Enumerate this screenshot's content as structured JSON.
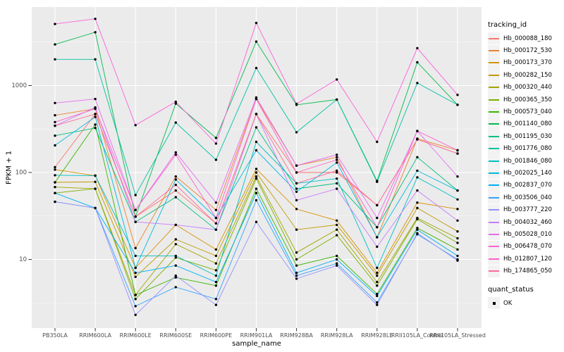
{
  "chart_data": {
    "type": "line",
    "title": "",
    "xlabel": "sample_name",
    "ylabel": "FPKM + 1",
    "y_scale": "log10",
    "y_ticks": [
      10,
      100,
      1000
    ],
    "y_tick_labels": [
      "10",
      "100",
      "1000"
    ],
    "y_minor_logs": [
      0.5,
      1.5,
      2.5,
      3.5
    ],
    "ylim_log": [
      0.2,
      3.9
    ],
    "grid": "major white on gray panel",
    "panel_bg": "#EBEBEB",
    "grid_color": "#FFFFFF",
    "tick_label_color": "#4D4D4D",
    "point_color": "#000000",
    "legend_position": "right",
    "legend_title": "tracking_id",
    "x_categories": [
      "PB350LA",
      "RRIM600LA",
      "RRIM600LE",
      "RRIM600SE",
      "RRIM600PE",
      "RRIM901LA",
      "RRIM928BA",
      "RRIM928LA",
      "RRIM928LE",
      "RRII105LA_Control",
      "RRII105LA_Stressed"
    ],
    "series": [
      {
        "name": "Hb_000088_180",
        "color": "#F8766D",
        "values": [
          115,
          470,
          31,
          62,
          26,
          470,
          100,
          100,
          42,
          240,
          165
        ]
      },
      {
        "name": "Hb_000172_530",
        "color": "#EA8331",
        "values": [
          455,
          540,
          13.5,
          90,
          37,
          700,
          120,
          150,
          18,
          245,
          180
        ]
      },
      {
        "name": "Hb_000173_370",
        "color": "#D89000",
        "values": [
          108,
          92,
          8,
          25,
          13,
          110,
          38,
          28,
          7,
          45,
          38
        ]
      },
      {
        "name": "Hb_000282_150",
        "color": "#C09B00",
        "values": [
          77,
          78,
          6.3,
          17,
          11,
          100,
          22,
          25,
          6.5,
          39,
          21
        ]
      },
      {
        "name": "Hb_000320_440",
        "color": "#A3A500",
        "values": [
          68,
          65,
          3.9,
          15,
          9,
          90,
          12,
          22,
          5.5,
          30,
          17.5
        ]
      },
      {
        "name": "Hb_000365_350",
        "color": "#7CAE00",
        "values": [
          58,
          65,
          3.5,
          10.5,
          7.5,
          85,
          10,
          19,
          5,
          29,
          15.5
        ]
      },
      {
        "name": "Hb_000573_040",
        "color": "#39B600",
        "values": [
          77,
          355,
          3.9,
          6.2,
          5,
          65,
          8.5,
          11,
          4,
          23,
          13
        ]
      },
      {
        "name": "Hb_001140_080",
        "color": "#00BB4E",
        "values": [
          2970,
          4100,
          31,
          620,
          250,
          3200,
          600,
          690,
          80,
          1850,
          600
        ]
      },
      {
        "name": "Hb_001195_030",
        "color": "#00BF7D",
        "values": [
          265,
          325,
          27,
          52,
          22,
          330,
          65,
          75,
          23.5,
          150,
          62
        ]
      },
      {
        "name": "Hb_001776_080",
        "color": "#00C1A3",
        "values": [
          2000,
          2000,
          55,
          375,
          140,
          1590,
          290,
          690,
          78,
          1070,
          600
        ]
      },
      {
        "name": "Hb_001846_080",
        "color": "#00BFC4",
        "values": [
          93,
          92,
          11,
          11,
          6.5,
          225,
          75,
          85,
          8,
          88,
          49
        ]
      },
      {
        "name": "Hb_002025_140",
        "color": "#00BAE0",
        "values": [
          205,
          435,
          8,
          83,
          30,
          180,
          60,
          130,
          18,
          105,
          62
        ]
      },
      {
        "name": "Hb_002837_070",
        "color": "#00B0F6",
        "values": [
          58,
          39,
          7,
          8.5,
          5.5,
          58,
          7,
          10,
          3.8,
          22,
          11
        ]
      },
      {
        "name": "Hb_003506_040",
        "color": "#35A2FF",
        "values": [
          46,
          39,
          2.9,
          4.8,
          3.5,
          48,
          6.5,
          9,
          3.2,
          19.5,
          10
        ]
      },
      {
        "name": "Hb_003777_220",
        "color": "#9590FF",
        "values": [
          46,
          39,
          2.3,
          6.5,
          3,
          27,
          6,
          8.5,
          3,
          20,
          9.7
        ]
      },
      {
        "name": "Hb_004032_460",
        "color": "#C77CFF",
        "values": [
          345,
          560,
          27,
          25,
          22,
          470,
          48,
          65,
          14,
          62,
          28
        ]
      },
      {
        "name": "Hb_005028_010",
        "color": "#E76BF3",
        "values": [
          630,
          700,
          37,
          170,
          45,
          730,
          120,
          160,
          30,
          300,
          90
        ]
      },
      {
        "name": "Hb_006478_070",
        "color": "#FA62DB",
        "values": [
          5100,
          5840,
          350,
          650,
          215,
          5250,
          615,
          1175,
          225,
          2690,
          780
        ]
      },
      {
        "name": "Hb_012807_120",
        "color": "#FF61CC",
        "values": [
          380,
          540,
          37,
          160,
          30,
          700,
          100,
          140,
          23.5,
          300,
          180
        ]
      },
      {
        "name": "Hb_174865_050",
        "color": "#FF6A98",
        "values": [
          345,
          470,
          31,
          72,
          26,
          470,
          75,
          105,
          42,
          240,
          165
        ]
      }
    ]
  },
  "legend_quant": {
    "title": "quant_status",
    "entries": [
      {
        "label": "OK",
        "symbol": "black-point"
      }
    ]
  }
}
